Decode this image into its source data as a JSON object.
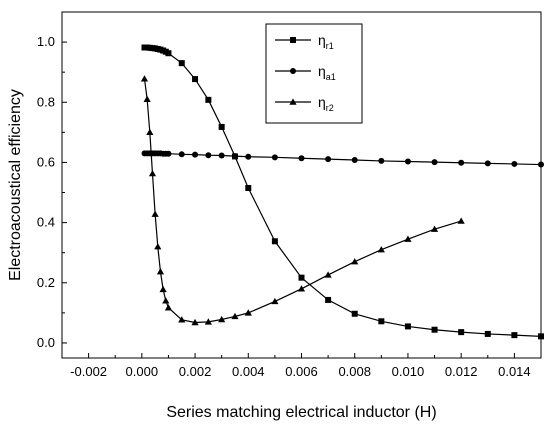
{
  "chart_data": {
    "type": "line",
    "title": "",
    "xlabel": "Series matching electrical inductor (H)",
    "ylabel": "Electroacoustical efficiency",
    "xlim": [
      -0.003,
      0.015
    ],
    "ylim": [
      -0.05,
      1.1
    ],
    "xticks": [
      -0.002,
      0.0,
      0.002,
      0.004,
      0.006,
      0.008,
      0.01,
      0.012,
      0.014
    ],
    "xtick_labels": [
      "-0.002",
      "0.000",
      "0.002",
      "0.004",
      "0.006",
      "0.008",
      "0.010",
      "0.012",
      "0.014"
    ],
    "yticks": [
      0.0,
      0.2,
      0.4,
      0.6,
      0.8,
      1.0
    ],
    "ytick_labels": [
      "0.0",
      "0.2",
      "0.4",
      "0.6",
      "0.8",
      "1.0"
    ],
    "grid": false,
    "legend_position": "top-center",
    "series": [
      {
        "name": "η",
        "name_sub": "r1",
        "marker": "square",
        "x": [
          0.0001,
          0.0002,
          0.0003,
          0.0004,
          0.0005,
          0.0006,
          0.0007,
          0.0008,
          0.0009,
          0.001,
          0.0015,
          0.002,
          0.0025,
          0.003,
          0.0035,
          0.004,
          0.005,
          0.006,
          0.007,
          0.008,
          0.009,
          0.01,
          0.011,
          0.012,
          0.013,
          0.014,
          0.015
        ],
        "y": [
          0.982,
          0.982,
          0.981,
          0.98,
          0.979,
          0.977,
          0.975,
          0.972,
          0.968,
          0.963,
          0.93,
          0.877,
          0.808,
          0.718,
          0.62,
          0.515,
          0.338,
          0.217,
          0.143,
          0.097,
          0.072,
          0.055,
          0.044,
          0.036,
          0.03,
          0.026,
          0.022
        ]
      },
      {
        "name": "η",
        "name_sub": "a1",
        "marker": "circle",
        "x": [
          0.0001,
          0.0002,
          0.0003,
          0.0004,
          0.0005,
          0.0006,
          0.0007,
          0.0008,
          0.0009,
          0.001,
          0.0015,
          0.002,
          0.0025,
          0.003,
          0.0035,
          0.004,
          0.005,
          0.006,
          0.007,
          0.008,
          0.009,
          0.01,
          0.011,
          0.012,
          0.013,
          0.014,
          0.015
        ],
        "y": [
          0.63,
          0.63,
          0.63,
          0.63,
          0.63,
          0.63,
          0.63,
          0.629,
          0.629,
          0.629,
          0.627,
          0.626,
          0.624,
          0.623,
          0.621,
          0.619,
          0.617,
          0.614,
          0.611,
          0.608,
          0.605,
          0.603,
          0.601,
          0.599,
          0.597,
          0.595,
          0.593
        ]
      },
      {
        "name": "η",
        "name_sub": "r2",
        "marker": "triangle",
        "x": [
          0.0001,
          0.0002,
          0.0003,
          0.0004,
          0.0005,
          0.0006,
          0.0007,
          0.0008,
          0.0009,
          0.001,
          0.0015,
          0.002,
          0.0025,
          0.003,
          0.0035,
          0.004,
          0.005,
          0.006,
          0.007,
          0.008,
          0.009,
          0.01,
          0.011,
          0.012
        ],
        "y": [
          0.878,
          0.81,
          0.7,
          0.563,
          0.428,
          0.32,
          0.237,
          0.178,
          0.14,
          0.117,
          0.077,
          0.068,
          0.07,
          0.078,
          0.088,
          0.1,
          0.138,
          0.18,
          0.226,
          0.27,
          0.31,
          0.345,
          0.378,
          0.405
        ]
      }
    ]
  }
}
